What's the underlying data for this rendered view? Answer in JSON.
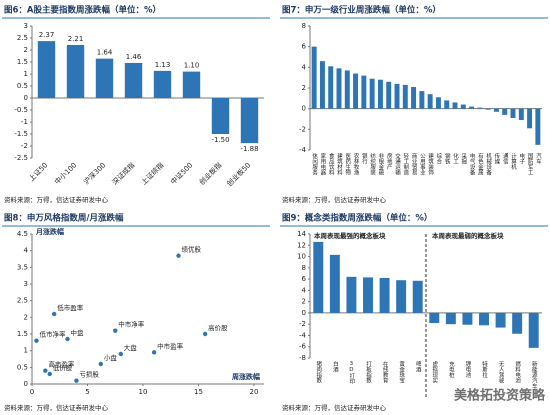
{
  "chart_data": [
    {
      "type": "bar",
      "title": "图6：A股主要指数周涨跌幅（单位：%）",
      "categories": [
        "上证50",
        "中小100",
        "沪深300",
        "深证成指",
        "上证综指",
        "中证500",
        "创业板指",
        "创业板50"
      ],
      "values": [
        2.37,
        2.21,
        1.64,
        1.46,
        1.13,
        1.1,
        -1.5,
        -1.88
      ],
      "value_labels": [
        "2.37",
        "2.21",
        "1.64",
        "1.46",
        "1.13",
        "1.10",
        "-1.50",
        "-1.88"
      ],
      "color": "#2e75b6",
      "ylim": [
        -2.5,
        3
      ],
      "yticks": [
        -2.5,
        -2,
        -1.5,
        -1,
        -0.5,
        0,
        0.5,
        1,
        1.5,
        2,
        2.5,
        3
      ],
      "source": "资料来源：万得，信达证券研发中心"
    },
    {
      "type": "bar",
      "title": "图7：申万一级行业周涨跌幅（单位：%）",
      "categories": [
        "休闲服务",
        "家用电器",
        "食品饮料",
        "建筑材料",
        "医药生物",
        "农林牧渔",
        "银行",
        "纺织服装",
        "非银金融",
        "房地产",
        "交通运输",
        "轻工制造",
        "商业贸易",
        "公用事业",
        "建筑装饰",
        "综合",
        "钢铁",
        "化工",
        "采掘",
        "电气设备",
        "有色金属",
        "机械设备",
        "传媒",
        "通信",
        "计算机",
        "电子",
        "国防军工",
        "汽车"
      ],
      "values": [
        6.0,
        4.6,
        4.1,
        3.9,
        3.7,
        3.4,
        3.2,
        2.9,
        2.8,
        2.6,
        2.4,
        2.3,
        2.1,
        1.7,
        1.4,
        1.1,
        0.8,
        0.6,
        0.4,
        0.2,
        0.1,
        -0.1,
        -0.3,
        -0.6,
        -0.9,
        -1.1,
        -1.9,
        -3.5
      ],
      "color": "#2e75b6",
      "ylim": [
        -4,
        8
      ],
      "yticks": [
        -4,
        -2,
        0,
        2,
        4,
        6,
        8
      ],
      "source": "资料来源：万得，信达证券研发中心"
    },
    {
      "type": "scatter",
      "title": "图8：申万风格指数周/月涨跌幅",
      "xlabel": "周涨跌幅",
      "ylabel": "月涨跌幅",
      "labels": [
        "绩优股",
        "中市净率",
        "高价股",
        "低市净率",
        "低市盈率",
        "高市盈率",
        "中盘",
        "大盘",
        "中市盈率",
        "小盘",
        "亏损股",
        "低价股"
      ],
      "x": [
        13.2,
        7.5,
        15.6,
        0.4,
        2.0,
        1.2,
        3.2,
        8.0,
        11.0,
        6.2,
        4.0,
        1.6
      ],
      "values": [
        3.85,
        1.6,
        1.5,
        1.3,
        2.1,
        0.4,
        1.35,
        0.9,
        0.95,
        0.6,
        0.1,
        0.3
      ],
      "color": "#2e75b6",
      "xlim": [
        0,
        20
      ],
      "xticks": [
        0,
        5,
        10,
        15,
        20
      ],
      "ylim": [
        0,
        4.5
      ],
      "yticks": [
        0,
        0.5,
        1,
        1.5,
        2,
        2.5,
        3,
        3.5,
        4,
        4.5
      ],
      "source": "资料来源：万得，信达证券研发中心"
    },
    {
      "type": "bar",
      "title": "图9：概念类指数周涨跌幅（单位：%）",
      "annotations": [
        "本周表现最强的概念板块",
        "本周表现最弱的概念板块"
      ],
      "categories": [
        "猪肉指数",
        "白酒",
        "3D打印",
        "打板指数",
        "在线教育",
        "黄金珠宝",
        "啤酒",
        "虚拟现实",
        "充电桩",
        "锂电池",
        "特斯拉",
        "无人驾驶",
        "燃料电池",
        "新能源汽车"
      ],
      "values": [
        12.6,
        10.3,
        6.4,
        6.3,
        6.2,
        5.8,
        5.7,
        -1.8,
        -2.0,
        -2.1,
        -2.2,
        -2.6,
        -3.7,
        -6.2
      ],
      "color": "#2e75b6",
      "ylim": [
        -8,
        14
      ],
      "yticks": [
        -8,
        -6,
        -4,
        -2,
        0,
        2,
        4,
        6,
        8,
        10,
        12,
        14
      ],
      "source": "资料来源：万得，信达证券研发中心"
    }
  ],
  "watermark": "美格拓投资策略"
}
